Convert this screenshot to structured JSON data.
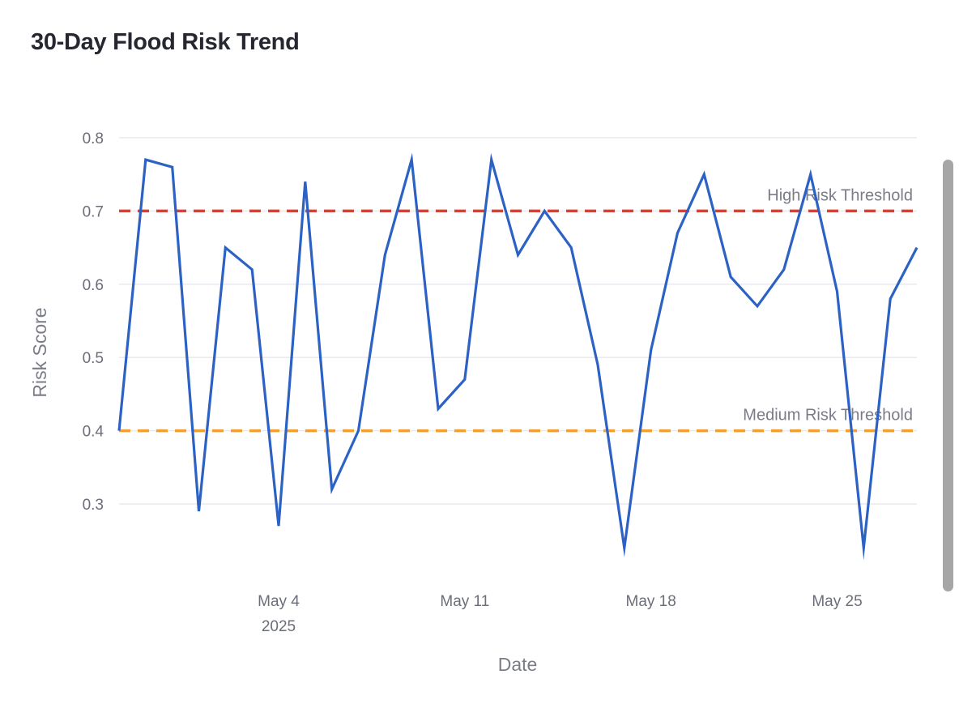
{
  "title": "30-Day Flood Risk Trend",
  "chart_data": {
    "type": "line",
    "title": "30-Day Flood Risk Trend",
    "xlabel": "Date",
    "ylabel": "Risk Score",
    "x_type": "date",
    "x": [
      "2025-04-28",
      "2025-04-29",
      "2025-04-30",
      "2025-05-01",
      "2025-05-02",
      "2025-05-03",
      "2025-05-04",
      "2025-05-05",
      "2025-05-06",
      "2025-05-07",
      "2025-05-08",
      "2025-05-09",
      "2025-05-10",
      "2025-05-11",
      "2025-05-12",
      "2025-05-13",
      "2025-05-14",
      "2025-05-15",
      "2025-05-16",
      "2025-05-17",
      "2025-05-18",
      "2025-05-19",
      "2025-05-20",
      "2025-05-21",
      "2025-05-22",
      "2025-05-23",
      "2025-05-24",
      "2025-05-25",
      "2025-05-26",
      "2025-05-27",
      "2025-05-28"
    ],
    "series": [
      {
        "color": "#2c62c4",
        "values": [
          0.4,
          0.77,
          0.76,
          0.29,
          0.65,
          0.62,
          0.27,
          0.74,
          0.32,
          0.4,
          0.64,
          0.77,
          0.43,
          0.47,
          0.77,
          0.64,
          0.7,
          0.65,
          0.49,
          0.24,
          0.51,
          0.67,
          0.75,
          0.61,
          0.57,
          0.62,
          0.75,
          0.59,
          0.24,
          0.58,
          0.65
        ]
      }
    ],
    "thresholds": [
      {
        "label": "High Risk Threshold",
        "value": 0.7,
        "color": "#e8392c"
      },
      {
        "label": "Medium Risk Threshold",
        "value": 0.4,
        "color": "#f2a033"
      }
    ],
    "x_ticks": [
      {
        "date": "2025-05-04",
        "label": "May 4",
        "sublabel": "2025"
      },
      {
        "date": "2025-05-11",
        "label": "May 11",
        "sublabel": ""
      },
      {
        "date": "2025-05-18",
        "label": "May 18",
        "sublabel": ""
      },
      {
        "date": "2025-05-25",
        "label": "May 25",
        "sublabel": ""
      }
    ],
    "y_ticks": [
      "0.3",
      "0.4",
      "0.5",
      "0.6",
      "0.7",
      "0.8"
    ],
    "ylim": [
      0.2,
      0.8
    ],
    "grid": true,
    "legend": "none"
  }
}
